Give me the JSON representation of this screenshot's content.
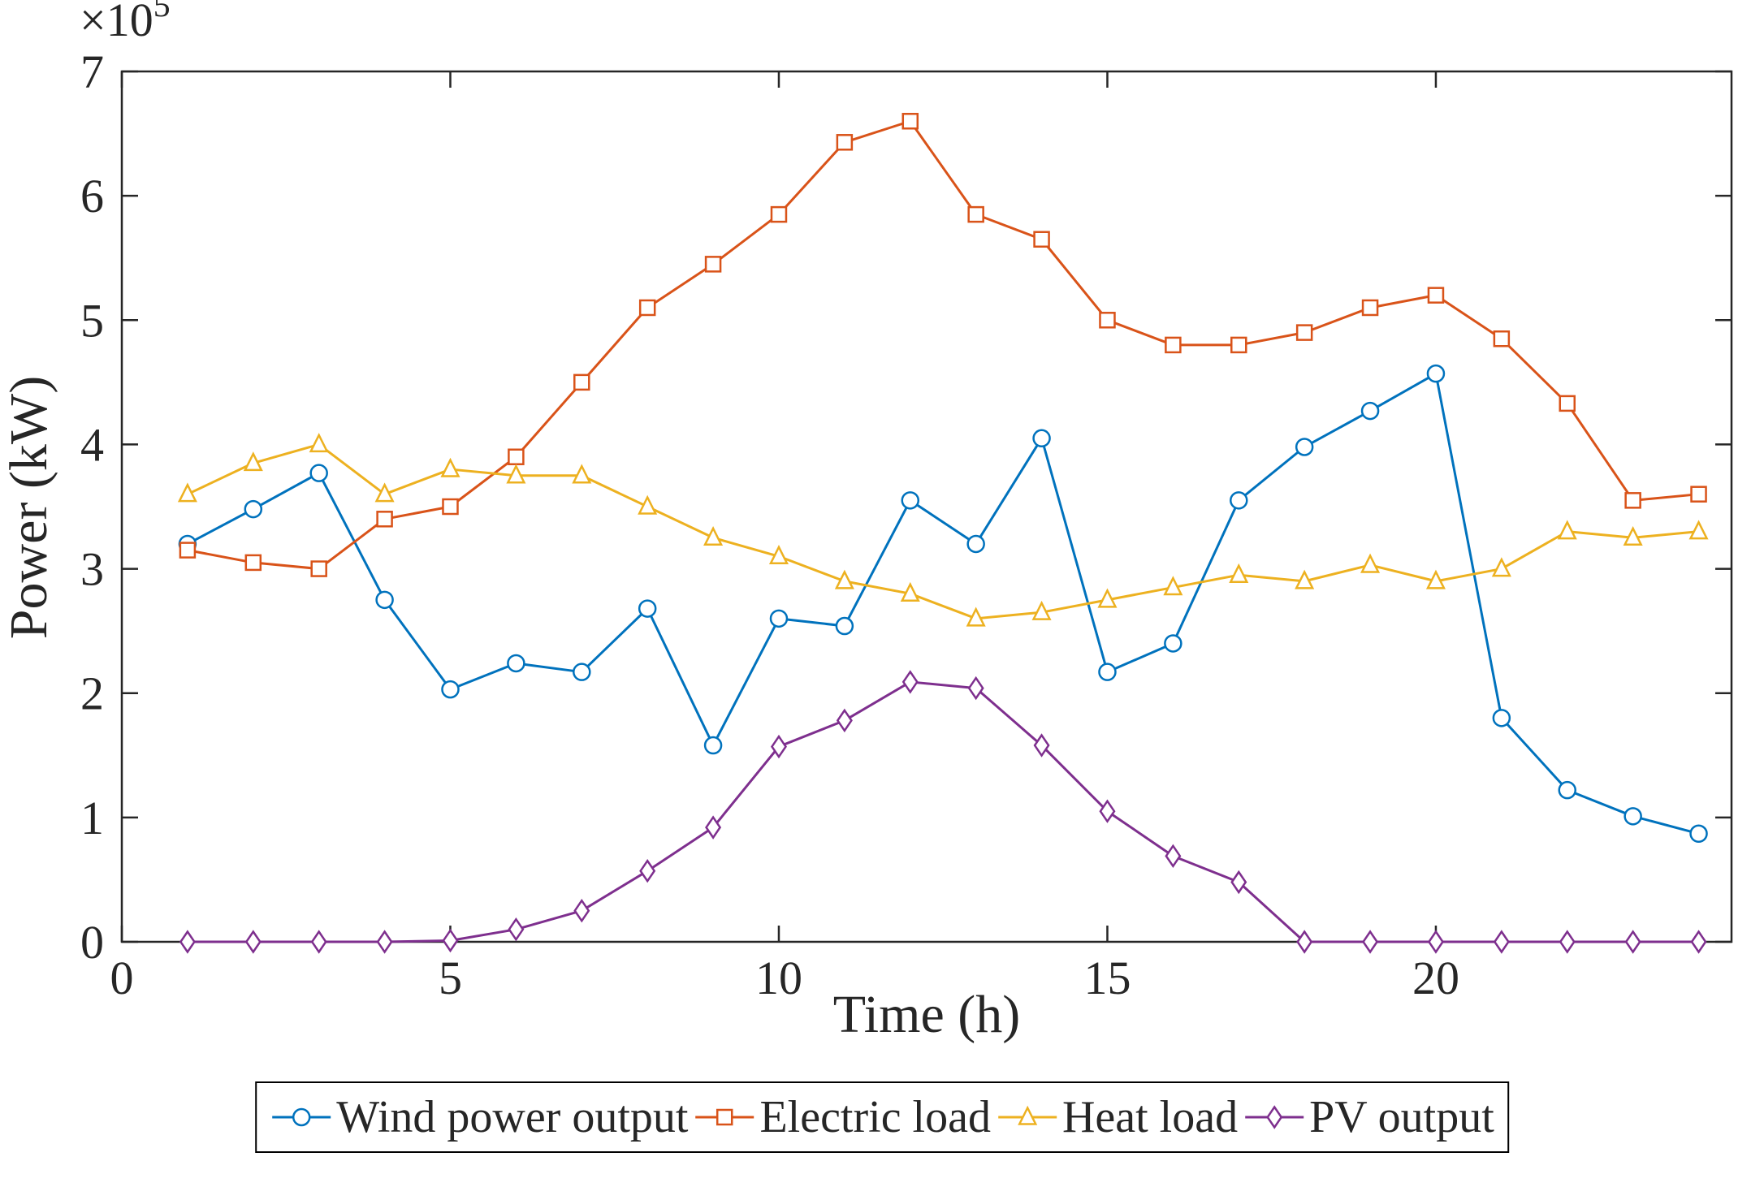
{
  "chart_data": {
    "type": "line",
    "title": "",
    "xlabel": "Time (h)",
    "ylabel": "Power (kW)",
    "y_scale_label": {
      "base": "×10",
      "exponent": "5"
    },
    "y_unit_multiplier": 100000,
    "xlim": [
      0,
      24.5
    ],
    "ylim": [
      0,
      7
    ],
    "xticks": [
      0,
      5,
      10,
      15,
      20
    ],
    "yticks": [
      0,
      1,
      2,
      3,
      4,
      5,
      6,
      7
    ],
    "grid": false,
    "legend": {
      "position": "below-horizontal"
    },
    "x": [
      1,
      2,
      3,
      4,
      5,
      6,
      7,
      8,
      9,
      10,
      11,
      12,
      13,
      14,
      15,
      16,
      17,
      18,
      19,
      20,
      21,
      22,
      23,
      24
    ],
    "series": [
      {
        "name": "Wind power output",
        "color": "#0072BD",
        "marker": "circle",
        "values": [
          3.2,
          3.48,
          3.77,
          2.75,
          2.03,
          2.24,
          2.17,
          2.68,
          1.58,
          2.6,
          2.54,
          3.55,
          3.2,
          4.05,
          2.17,
          2.4,
          3.55,
          3.98,
          4.27,
          4.57,
          1.8,
          1.22,
          1.01,
          0.87
        ]
      },
      {
        "name": "Electric load",
        "color": "#D95319",
        "marker": "square",
        "values": [
          3.15,
          3.05,
          3.0,
          3.4,
          3.5,
          3.9,
          4.5,
          5.1,
          5.45,
          5.85,
          6.43,
          6.6,
          5.85,
          5.65,
          5.0,
          4.8,
          4.8,
          4.9,
          5.1,
          5.2,
          4.85,
          4.33,
          3.55,
          3.6
        ]
      },
      {
        "name": "Heat load",
        "color": "#EDB120",
        "marker": "triangle",
        "values": [
          3.6,
          3.85,
          4.0,
          3.6,
          3.8,
          3.75,
          3.75,
          3.5,
          3.25,
          3.1,
          2.9,
          2.8,
          2.6,
          2.65,
          2.75,
          2.85,
          2.95,
          2.9,
          3.03,
          2.9,
          3.0,
          3.3,
          3.25,
          3.3
        ]
      },
      {
        "name": "PV output",
        "color": "#7E2F8E",
        "marker": "diamond",
        "values": [
          0,
          0,
          0,
          0,
          0.01,
          0.1,
          0.25,
          0.57,
          0.92,
          1.57,
          1.78,
          2.09,
          2.04,
          1.58,
          1.05,
          0.69,
          0.48,
          0,
          0,
          0,
          0,
          0,
          0,
          0
        ]
      }
    ]
  }
}
